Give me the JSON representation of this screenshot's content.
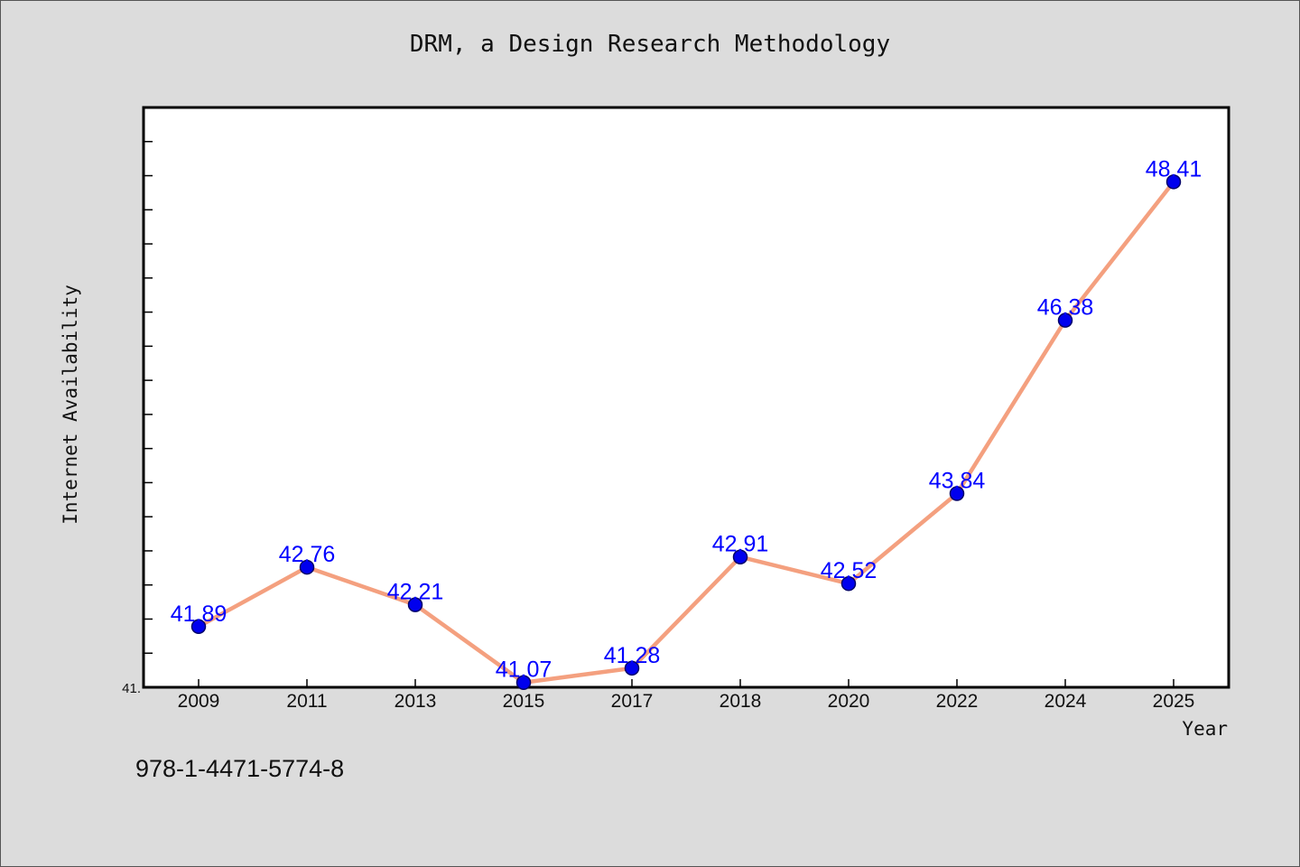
{
  "chart_data": {
    "type": "line",
    "title": "DRM, a Design Research Methodology",
    "xlabel": "Year",
    "ylabel": "Internet Availability",
    "categories": [
      "2009",
      "2011",
      "2013",
      "2015",
      "2017",
      "2018",
      "2020",
      "2022",
      "2024",
      "2025"
    ],
    "values": [
      41.89,
      42.76,
      42.21,
      41.07,
      41.28,
      42.91,
      42.52,
      43.84,
      46.38,
      48.41
    ],
    "data_labels": [
      "41.89",
      "42.76",
      "42.21",
      "41.07",
      "41.28",
      "42.91",
      "42.52",
      "43.84",
      "46.38",
      "48.41"
    ],
    "y_tick_labels": [
      "41."
    ],
    "ylim": [
      41.0,
      49.5
    ],
    "grid": false,
    "line_color": "#f4a07f",
    "marker_color": "#0000ee",
    "label_color": "#0000ff"
  },
  "footer": {
    "isbn": "978-1-4471-5774-8"
  }
}
